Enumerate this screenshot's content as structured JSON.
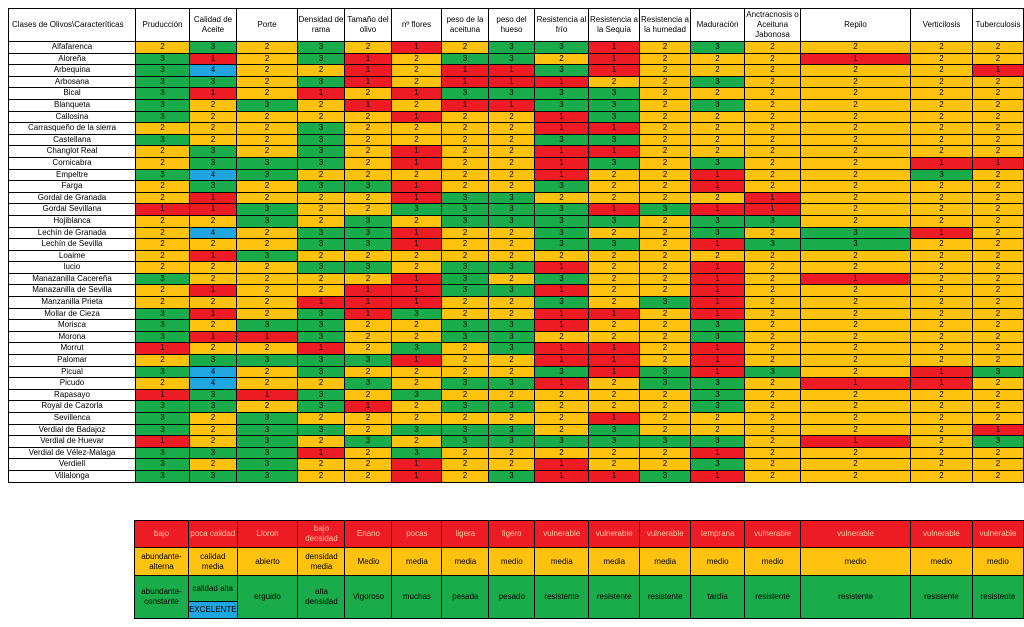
{
  "headers": [
    "Clases de Olivos\\Caracteríticas",
    "Pruducción",
    "Calidad de Aceite",
    "Porte",
    "Densidad de rama",
    "Tamaño del olivo",
    "nº flores",
    "peso de la aceituna",
    "peso del hueso",
    "Resistencia al frío",
    "Resistencia a la Sequía",
    "Resistencia a la humedad",
    "Maduración",
    "Anctracnosis o Aceituna Jabonosa",
    "Repilo",
    "Verticilosis",
    "Tuberculosis"
  ],
  "rows": [
    {
      "name": "Alfafarenca",
      "v": [
        "2",
        "3",
        "2",
        "3",
        "2",
        "1",
        "2",
        "3",
        "3",
        "1",
        "2",
        "3",
        "2",
        "2",
        "2",
        "2"
      ]
    },
    {
      "name": "Aloreña",
      "v": [
        "3",
        "1",
        "2",
        "3",
        "1",
        "2",
        "3",
        "3",
        "2",
        "1",
        "2",
        "2",
        "2",
        "1",
        "2",
        "2"
      ]
    },
    {
      "name": "Arbequina",
      "v": [
        "3",
        "4",
        "2",
        "2",
        "1",
        "2",
        "1",
        "1",
        "3",
        "1",
        "2",
        "2",
        "2",
        "2",
        "2",
        "1"
      ]
    },
    {
      "name": "Arbosana",
      "v": [
        "3",
        "3",
        "2",
        "3",
        "1",
        "2",
        "1",
        "1",
        "1",
        "2",
        "2",
        "3",
        "2",
        "2",
        "2",
        "2"
      ]
    },
    {
      "name": "Bical",
      "v": [
        "3",
        "1",
        "2",
        "1",
        "2",
        "1",
        "3",
        "3",
        "3",
        "3",
        "2",
        "2",
        "2",
        "2",
        "2",
        "2"
      ]
    },
    {
      "name": "Blanqueta",
      "v": [
        "3",
        "2",
        "3",
        "2",
        "1",
        "2",
        "1",
        "1",
        "3",
        "3",
        "2",
        "3",
        "2",
        "2",
        "2",
        "2"
      ]
    },
    {
      "name": "Callosina",
      "v": [
        "3",
        "2",
        "2",
        "2",
        "2",
        "1",
        "2",
        "2",
        "1",
        "3",
        "2",
        "2",
        "2",
        "2",
        "2",
        "2"
      ]
    },
    {
      "name": "Carrasqueño de la sierra",
      "v": [
        "2",
        "2",
        "2",
        "3",
        "2",
        "2",
        "2",
        "2",
        "1",
        "1",
        "2",
        "2",
        "2",
        "2",
        "2",
        "2"
      ]
    },
    {
      "name": "Castellana",
      "v": [
        "3",
        "2",
        "2",
        "3",
        "2",
        "2",
        "2",
        "2",
        "3",
        "3",
        "2",
        "2",
        "2",
        "2",
        "2",
        "2"
      ]
    },
    {
      "name": "Changlot Real",
      "v": [
        "2",
        "3",
        "2",
        "3",
        "2",
        "1",
        "2",
        "2",
        "1",
        "1",
        "2",
        "2",
        "2",
        "2",
        "2",
        "2"
      ]
    },
    {
      "name": "Cornicabra",
      "v": [
        "2",
        "3",
        "3",
        "3",
        "2",
        "1",
        "2",
        "2",
        "1",
        "3",
        "2",
        "3",
        "2",
        "2",
        "1",
        "1"
      ]
    },
    {
      "name": "Empeltre",
      "v": [
        "3",
        "4",
        "3",
        "2",
        "2",
        "2",
        "2",
        "2",
        "1",
        "2",
        "2",
        "1",
        "2",
        "2",
        "3",
        "2"
      ]
    },
    {
      "name": "Farga",
      "v": [
        "2",
        "3",
        "2",
        "3",
        "3",
        "1",
        "2",
        "2",
        "3",
        "2",
        "2",
        "1",
        "2",
        "2",
        "2",
        "2"
      ]
    },
    {
      "name": "Gordal de Granada",
      "v": [
        "2",
        "1",
        "2",
        "2",
        "2",
        "1",
        "3",
        "3",
        "2",
        "2",
        "2",
        "2",
        "1",
        "2",
        "2",
        "2"
      ]
    },
    {
      "name": "Gordal Sevillana",
      "v": [
        "1",
        "1",
        "3",
        "2",
        "2",
        "3",
        "3",
        "3",
        "3",
        "1",
        "3",
        "1",
        "1",
        "2",
        "2",
        "2"
      ]
    },
    {
      "name": "Hojiblanca",
      "v": [
        "2",
        "2",
        "3",
        "2",
        "3",
        "2",
        "3",
        "3",
        "3",
        "3",
        "2",
        "3",
        "3",
        "2",
        "2",
        "2"
      ]
    },
    {
      "name": "Lechín de Granada",
      "v": [
        "2",
        "4",
        "2",
        "3",
        "3",
        "1",
        "2",
        "2",
        "3",
        "2",
        "2",
        "3",
        "2",
        "3",
        "1",
        "2"
      ]
    },
    {
      "name": "Lechín de Sevilla",
      "v": [
        "2",
        "2",
        "2",
        "3",
        "3",
        "1",
        "2",
        "2",
        "3",
        "3",
        "2",
        "1",
        "3",
        "3",
        "2",
        "2"
      ]
    },
    {
      "name": "Loaime",
      "v": [
        "2",
        "1",
        "3",
        "2",
        "2",
        "2",
        "2",
        "2",
        "2",
        "2",
        "2",
        "2",
        "2",
        "2",
        "2",
        "2"
      ]
    },
    {
      "name": "lucio",
      "v": [
        "2",
        "2",
        "2",
        "3",
        "3",
        "2",
        "3",
        "3",
        "1",
        "2",
        "2",
        "1",
        "2",
        "2",
        "2",
        "2"
      ]
    },
    {
      "name": "Manazanilla Cacereña",
      "v": [
        "3",
        "2",
        "2",
        "2",
        "2",
        "1",
        "3",
        "2",
        "3",
        "2",
        "2",
        "1",
        "2",
        "1",
        "2",
        "2"
      ]
    },
    {
      "name": "Manazanilla de Sevilla",
      "v": [
        "2",
        "1",
        "2",
        "2",
        "1",
        "1",
        "3",
        "3",
        "1",
        "2",
        "2",
        "1",
        "2",
        "2",
        "2",
        "2"
      ]
    },
    {
      "name": "Manzanilla Prieta",
      "v": [
        "2",
        "2",
        "2",
        "1",
        "1",
        "1",
        "2",
        "2",
        "3",
        "2",
        "3",
        "1",
        "2",
        "2",
        "2",
        "2"
      ]
    },
    {
      "name": "Mollar de Cieza",
      "v": [
        "3",
        "1",
        "2",
        "3",
        "1",
        "3",
        "2",
        "2",
        "1",
        "1",
        "2",
        "1",
        "2",
        "2",
        "2",
        "2"
      ]
    },
    {
      "name": "Morisca",
      "v": [
        "3",
        "2",
        "3",
        "3",
        "2",
        "2",
        "3",
        "3",
        "1",
        "2",
        "2",
        "3",
        "2",
        "2",
        "2",
        "2"
      ]
    },
    {
      "name": "Morona",
      "v": [
        "3",
        "1",
        "1",
        "3",
        "2",
        "2",
        "3",
        "3",
        "2",
        "2",
        "2",
        "3",
        "2",
        "2",
        "2",
        "2"
      ]
    },
    {
      "name": "Morrut",
      "v": [
        "1",
        "2",
        "2",
        "1",
        "2",
        "3",
        "2",
        "3",
        "1",
        "1",
        "2",
        "1",
        "2",
        "2",
        "2",
        "2"
      ]
    },
    {
      "name": "Palomar",
      "v": [
        "2",
        "3",
        "3",
        "3",
        "3",
        "1",
        "2",
        "2",
        "1",
        "1",
        "2",
        "1",
        "2",
        "2",
        "2",
        "2"
      ]
    },
    {
      "name": "Picual",
      "v": [
        "3",
        "4",
        "2",
        "3",
        "2",
        "2",
        "2",
        "2",
        "3",
        "1",
        "3",
        "1",
        "3",
        "2",
        "1",
        "3"
      ]
    },
    {
      "name": "Picudo",
      "v": [
        "2",
        "4",
        "2",
        "2",
        "3",
        "2",
        "3",
        "3",
        "1",
        "2",
        "3",
        "3",
        "2",
        "1",
        "1",
        "2"
      ]
    },
    {
      "name": "Rapasayo",
      "v": [
        "1",
        "3",
        "1",
        "3",
        "2",
        "3",
        "2",
        "2",
        "2",
        "2",
        "2",
        "3",
        "2",
        "2",
        "2",
        "2"
      ]
    },
    {
      "name": "Royal de Cazorla",
      "v": [
        "3",
        "3",
        "2",
        "3",
        "1",
        "2",
        "3",
        "3",
        "2",
        "2",
        "2",
        "3",
        "2",
        "2",
        "2",
        "2"
      ]
    },
    {
      "name": "Sevillenca",
      "v": [
        "3",
        "2",
        "3",
        "2",
        "2",
        "2",
        "2",
        "2",
        "2",
        "1",
        "2",
        "2",
        "2",
        "2",
        "2",
        "2"
      ]
    },
    {
      "name": "Verdial de Badajoz",
      "v": [
        "3",
        "2",
        "3",
        "3",
        "2",
        "3",
        "3",
        "3",
        "2",
        "3",
        "2",
        "2",
        "2",
        "2",
        "2",
        "1"
      ]
    },
    {
      "name": "Verdial de Huevar",
      "v": [
        "1",
        "2",
        "3",
        "2",
        "3",
        "2",
        "3",
        "3",
        "3",
        "3",
        "3",
        "3",
        "2",
        "1",
        "2",
        "3"
      ]
    },
    {
      "name": "Verdial de Vélez-Malaga",
      "v": [
        "3",
        "3",
        "3",
        "1",
        "2",
        "3",
        "2",
        "2",
        "2",
        "2",
        "2",
        "1",
        "2",
        "2",
        "2",
        "2"
      ]
    },
    {
      "name": "Verdiell",
      "v": [
        "3",
        "2",
        "3",
        "2",
        "2",
        "1",
        "2",
        "2",
        "1",
        "2",
        "2",
        "3",
        "2",
        "2",
        "2",
        "2"
      ]
    },
    {
      "name": "Villalonga",
      "v": [
        "3",
        "3",
        "3",
        "2",
        "2",
        "1",
        "2",
        "3",
        "1",
        "1",
        "3",
        "1",
        "2",
        "2",
        "2",
        "2"
      ]
    }
  ],
  "legend": {
    "row1": [
      "bajo",
      "poca calidad",
      "Lloron",
      "bajo densidad",
      "Enano",
      "pocas",
      "ligera",
      "ligero",
      "vulnerable",
      "vulnerable",
      "vulnerable",
      "temprana",
      "vulnerable",
      "vulnerable",
      "vulnerable",
      "vulnerable"
    ],
    "row2": [
      "abundante-alterna",
      "calidad media",
      "abierto",
      "densidad media",
      "Medio",
      "media",
      "media",
      "medio",
      "media",
      "media",
      "media",
      "medio",
      "medio",
      "medio",
      "medio",
      "medio"
    ],
    "row3": [
      "abundante-constante",
      "calidad alta",
      "erguido",
      "alta densidad",
      "Vigoroso",
      "muchas",
      "pesada",
      "pesado",
      "resistente",
      "resistente",
      "resistente",
      "tardía",
      "resistente",
      "resistente",
      "resistente",
      "resistente"
    ],
    "excellent": "EXCELENTE"
  },
  "colors": {
    "1": "#ed1c24",
    "2": "#ffc20e",
    "3": "#1aab4a",
    "4": "#1fa6e0"
  }
}
